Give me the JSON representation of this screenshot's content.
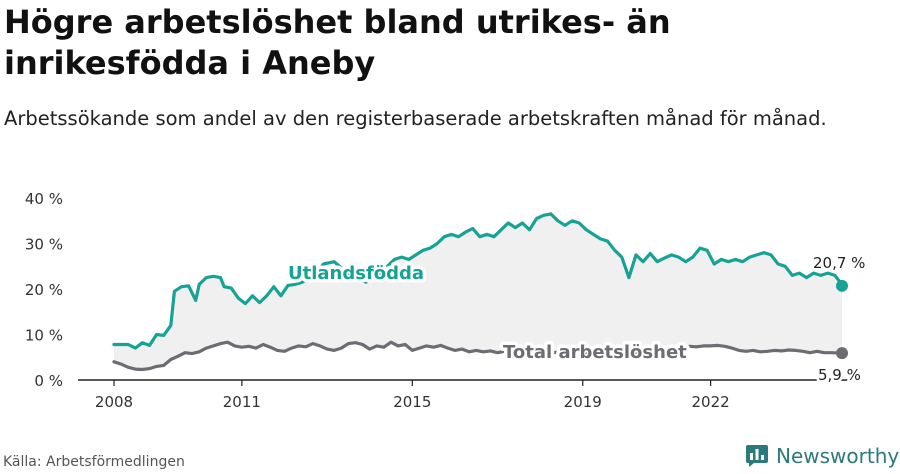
{
  "title": "Högre arbetslöshet bland utrikes- än inrikesfödda i Aneby",
  "subtitle": "Arbetssökande som andel av den registerbaserade arbetskraften månad för månad.",
  "source": "Källa: Arbetsförmedlingen",
  "brand": "Newsworthy",
  "colors": {
    "utlandsfodda": "#16a394",
    "total": "#6e6b73",
    "area": "#f0f0f0",
    "axis": "#222222",
    "brand": "#2c7a7b"
  },
  "chart_data": {
    "type": "line",
    "title": "Högre arbetslöshet bland utrikes- än inrikesfödda i Aneby",
    "xlabel": "",
    "ylabel": "",
    "x_ticks": [
      "2008",
      "2011",
      "2015",
      "2019",
      "2022"
    ],
    "y_ticks": [
      "0 %",
      "10 %",
      "20 %",
      "30 %",
      "40 %"
    ],
    "ylim": [
      0,
      40
    ],
    "grid": false,
    "shaded_area_between_series": true,
    "series": [
      {
        "name": "Utlandsfödda",
        "label_text": "Utlandsfödda",
        "end_label": "20,7 %",
        "points": [
          [
            "2008-01",
            7.8
          ],
          [
            "2008-03",
            7.8
          ],
          [
            "2008-05",
            7.8
          ],
          [
            "2008-07",
            7.0
          ],
          [
            "2008-09",
            8.2
          ],
          [
            "2008-11",
            7.6
          ],
          [
            "2009-01",
            10.0
          ],
          [
            "2009-03",
            9.8
          ],
          [
            "2009-05",
            12.0
          ],
          [
            "2009-06",
            19.5
          ],
          [
            "2009-08",
            20.5
          ],
          [
            "2009-10",
            20.7
          ],
          [
            "2009-12",
            17.5
          ],
          [
            "2010-01",
            21.0
          ],
          [
            "2010-03",
            22.5
          ],
          [
            "2010-05",
            22.8
          ],
          [
            "2010-07",
            22.5
          ],
          [
            "2010-08",
            20.5
          ],
          [
            "2010-10",
            20.2
          ],
          [
            "2010-12",
            18.0
          ],
          [
            "2011-02",
            16.8
          ],
          [
            "2011-04",
            18.5
          ],
          [
            "2011-06",
            17.0
          ],
          [
            "2011-08",
            18.5
          ],
          [
            "2011-10",
            20.5
          ],
          [
            "2011-12",
            18.5
          ],
          [
            "2012-02",
            20.8
          ],
          [
            "2012-04",
            21.0
          ],
          [
            "2012-06",
            21.5
          ],
          [
            "2012-08",
            22.5
          ],
          [
            "2012-10",
            23.5
          ],
          [
            "2012-12",
            25.5
          ],
          [
            "2013-03",
            26.0
          ],
          [
            "2013-06",
            24.0
          ],
          [
            "2013-09",
            22.5
          ],
          [
            "2013-12",
            21.5
          ],
          [
            "2014-03",
            23.0
          ],
          [
            "2014-06",
            25.0
          ],
          [
            "2014-08",
            26.5
          ],
          [
            "2014-10",
            27.0
          ],
          [
            "2014-12",
            26.5
          ],
          [
            "2015-02",
            27.5
          ],
          [
            "2015-04",
            28.5
          ],
          [
            "2015-06",
            29.0
          ],
          [
            "2015-08",
            30.0
          ],
          [
            "2015-10",
            31.5
          ],
          [
            "2015-12",
            32.0
          ],
          [
            "2016-02",
            31.5
          ],
          [
            "2016-04",
            32.5
          ],
          [
            "2016-06",
            33.3
          ],
          [
            "2016-08",
            31.5
          ],
          [
            "2016-10",
            32.0
          ],
          [
            "2016-12",
            31.5
          ],
          [
            "2017-02",
            33.0
          ],
          [
            "2017-04",
            34.5
          ],
          [
            "2017-06",
            33.5
          ],
          [
            "2017-08",
            34.5
          ],
          [
            "2017-10",
            33.0
          ],
          [
            "2017-12",
            35.5
          ],
          [
            "2018-02",
            36.2
          ],
          [
            "2018-04",
            36.5
          ],
          [
            "2018-06",
            35.0
          ],
          [
            "2018-08",
            34.0
          ],
          [
            "2018-10",
            35.0
          ],
          [
            "2018-12",
            34.5
          ],
          [
            "2019-02",
            33.0
          ],
          [
            "2019-04",
            32.0
          ],
          [
            "2019-06",
            31.0
          ],
          [
            "2019-08",
            30.5
          ],
          [
            "2019-10",
            28.5
          ],
          [
            "2019-12",
            27.0
          ],
          [
            "2020-02",
            22.5
          ],
          [
            "2020-04",
            27.5
          ],
          [
            "2020-06",
            26.0
          ],
          [
            "2020-08",
            27.8
          ],
          [
            "2020-10",
            26.0
          ],
          [
            "2020-12",
            26.8
          ],
          [
            "2021-02",
            27.5
          ],
          [
            "2021-04",
            27.0
          ],
          [
            "2021-06",
            26.0
          ],
          [
            "2021-08",
            27.0
          ],
          [
            "2021-10",
            29.0
          ],
          [
            "2021-12",
            28.5
          ],
          [
            "2022-02",
            25.5
          ],
          [
            "2022-04",
            26.5
          ],
          [
            "2022-06",
            26.0
          ],
          [
            "2022-08",
            26.5
          ],
          [
            "2022-10",
            26.0
          ],
          [
            "2022-12",
            27.0
          ],
          [
            "2023-02",
            27.5
          ],
          [
            "2023-04",
            28.0
          ],
          [
            "2023-06",
            27.5
          ],
          [
            "2023-08",
            25.5
          ],
          [
            "2023-10",
            25.0
          ],
          [
            "2023-12",
            23.0
          ],
          [
            "2024-02",
            23.5
          ],
          [
            "2024-04",
            22.5
          ],
          [
            "2024-06",
            23.5
          ],
          [
            "2024-08",
            23.0
          ],
          [
            "2024-10",
            23.5
          ],
          [
            "2024-12",
            23.0
          ],
          [
            "2025-01",
            22.0
          ],
          [
            "2025-02",
            20.7
          ]
        ]
      },
      {
        "name": "Total arbetslöshet",
        "label_text": "Total arbetslöshet",
        "end_label": "5,9 %",
        "points": [
          [
            "2008-01",
            4.0
          ],
          [
            "2008-03",
            3.5
          ],
          [
            "2008-05",
            2.8
          ],
          [
            "2008-07",
            2.4
          ],
          [
            "2008-09",
            2.3
          ],
          [
            "2008-11",
            2.5
          ],
          [
            "2009-01",
            3.0
          ],
          [
            "2009-03",
            3.2
          ],
          [
            "2009-05",
            4.5
          ],
          [
            "2009-07",
            5.2
          ],
          [
            "2009-09",
            6.0
          ],
          [
            "2009-11",
            5.8
          ],
          [
            "2010-01",
            6.2
          ],
          [
            "2010-03",
            7.0
          ],
          [
            "2010-05",
            7.5
          ],
          [
            "2010-07",
            8.0
          ],
          [
            "2010-09",
            8.3
          ],
          [
            "2010-11",
            7.5
          ],
          [
            "2011-01",
            7.2
          ],
          [
            "2011-03",
            7.4
          ],
          [
            "2011-05",
            7.0
          ],
          [
            "2011-07",
            7.8
          ],
          [
            "2011-09",
            7.2
          ],
          [
            "2011-11",
            6.5
          ],
          [
            "2012-01",
            6.3
          ],
          [
            "2012-03",
            7.0
          ],
          [
            "2012-05",
            7.5
          ],
          [
            "2012-07",
            7.3
          ],
          [
            "2012-09",
            8.0
          ],
          [
            "2012-11",
            7.5
          ],
          [
            "2013-01",
            6.8
          ],
          [
            "2013-03",
            6.5
          ],
          [
            "2013-05",
            7.0
          ],
          [
            "2013-07",
            8.0
          ],
          [
            "2013-09",
            8.2
          ],
          [
            "2013-11",
            7.8
          ],
          [
            "2014-01",
            6.8
          ],
          [
            "2014-03",
            7.5
          ],
          [
            "2014-05",
            7.2
          ],
          [
            "2014-07",
            8.3
          ],
          [
            "2014-09",
            7.5
          ],
          [
            "2014-11",
            7.8
          ],
          [
            "2015-01",
            6.5
          ],
          [
            "2015-03",
            7.0
          ],
          [
            "2015-05",
            7.5
          ],
          [
            "2015-07",
            7.2
          ],
          [
            "2015-09",
            7.6
          ],
          [
            "2015-11",
            7.0
          ],
          [
            "2016-01",
            6.5
          ],
          [
            "2016-03",
            6.8
          ],
          [
            "2016-05",
            6.2
          ],
          [
            "2016-07",
            6.5
          ],
          [
            "2016-09",
            6.2
          ],
          [
            "2016-11",
            6.4
          ],
          [
            "2017-01",
            6.0
          ],
          [
            "2017-03",
            6.3
          ],
          [
            "2017-05",
            6.2
          ],
          [
            "2017-07",
            6.5
          ],
          [
            "2017-09",
            6.3
          ],
          [
            "2017-11",
            6.2
          ],
          [
            "2018-01",
            6.0
          ],
          [
            "2018-03",
            6.2
          ],
          [
            "2018-05",
            6.0
          ],
          [
            "2018-07",
            6.3
          ],
          [
            "2018-09",
            6.0
          ],
          [
            "2018-11",
            6.2
          ],
          [
            "2019-01",
            6.0
          ],
          [
            "2019-03",
            6.1
          ],
          [
            "2019-05",
            6.0
          ],
          [
            "2019-07",
            6.2
          ],
          [
            "2019-09",
            5.9
          ],
          [
            "2019-11",
            6.0
          ],
          [
            "2020-01",
            6.0
          ],
          [
            "2020-03",
            6.0
          ],
          [
            "2020-05",
            6.1
          ],
          [
            "2020-07",
            6.0
          ],
          [
            "2020-09",
            6.1
          ],
          [
            "2020-11",
            6.0
          ],
          [
            "2021-01",
            6.3
          ],
          [
            "2021-03",
            7.0
          ],
          [
            "2021-05",
            7.2
          ],
          [
            "2021-07",
            7.4
          ],
          [
            "2021-09",
            7.3
          ],
          [
            "2021-11",
            7.5
          ],
          [
            "2022-01",
            7.5
          ],
          [
            "2022-03",
            7.6
          ],
          [
            "2022-05",
            7.4
          ],
          [
            "2022-07",
            7.0
          ],
          [
            "2022-09",
            6.5
          ],
          [
            "2022-11",
            6.3
          ],
          [
            "2023-01",
            6.5
          ],
          [
            "2023-03",
            6.2
          ],
          [
            "2023-05",
            6.3
          ],
          [
            "2023-07",
            6.5
          ],
          [
            "2023-09",
            6.4
          ],
          [
            "2023-11",
            6.6
          ],
          [
            "2024-01",
            6.5
          ],
          [
            "2024-03",
            6.3
          ],
          [
            "2024-05",
            6.0
          ],
          [
            "2024-07",
            6.3
          ],
          [
            "2024-09",
            6.0
          ],
          [
            "2024-11",
            6.0
          ],
          [
            "2025-02",
            5.9
          ]
        ]
      }
    ]
  }
}
